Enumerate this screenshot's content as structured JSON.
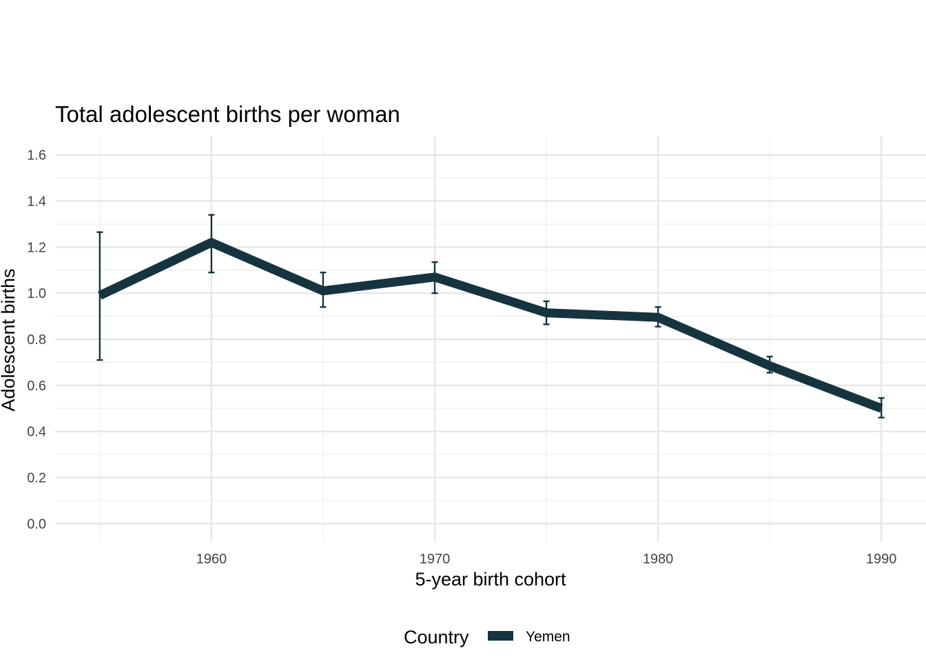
{
  "chart_data": {
    "type": "line",
    "title": "Total adolescent births per woman",
    "xlabel": "5-year birth cohort",
    "ylabel": "Adolescent births",
    "xlim": [
      1953,
      1992
    ],
    "ylim": [
      -0.08,
      1.68
    ],
    "x_ticks": [
      1960,
      1970,
      1980,
      1990
    ],
    "x_tick_labels": [
      "1960",
      "1970",
      "1980",
      "1990"
    ],
    "y_ticks": [
      0,
      0.2,
      0.4,
      0.6,
      0.8,
      1.0,
      1.2,
      1.4,
      1.6
    ],
    "y_tick_labels": [
      "0.0",
      "0.2",
      "0.4",
      "0.6",
      "0.8",
      "1.0",
      "1.2",
      "1.4",
      "1.6"
    ],
    "grid": true,
    "legend": {
      "title": "Country",
      "position": "bottom"
    },
    "series": [
      {
        "name": "Yemen",
        "color": "#16343f",
        "x": [
          1955,
          1960,
          1965,
          1970,
          1975,
          1980,
          1985,
          1990
        ],
        "y": [
          0.99,
          1.22,
          1.01,
          1.07,
          0.915,
          0.895,
          0.685,
          0.5
        ],
        "error_low": [
          0.71,
          1.09,
          0.94,
          1.0,
          0.865,
          0.855,
          0.655,
          0.46
        ],
        "error_high": [
          1.265,
          1.34,
          1.09,
          1.135,
          0.965,
          0.94,
          0.725,
          0.545
        ]
      }
    ]
  }
}
